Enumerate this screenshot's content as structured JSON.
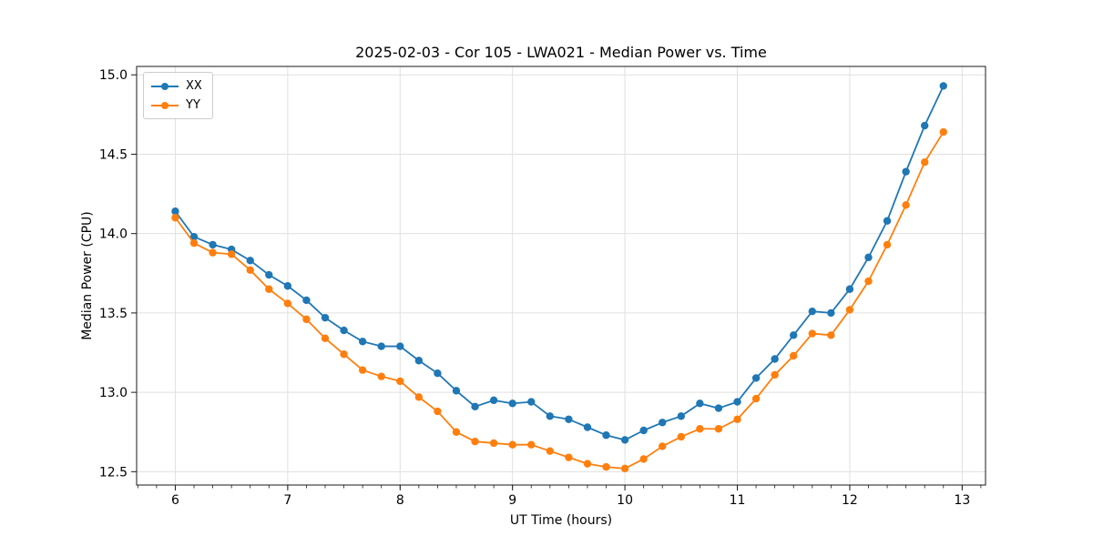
{
  "figure": {
    "title": "2025-02-03 - Cor 105 - LWA021 - Median Power vs. Time"
  },
  "legend": {
    "items": [
      {
        "label": "XX",
        "color": "#1f77b4"
      },
      {
        "label": "YY",
        "color": "#ff7f0e"
      }
    ]
  },
  "chart_data": {
    "type": "line",
    "title": "2025-02-03 - Cor 105 - LWA021 - Median Power vs. Time",
    "xlabel": "UT Time (hours)",
    "ylabel": "Median Power (CPU)",
    "xlim": [
      5.656,
      13.208
    ],
    "ylim": [
      12.416,
      15.053
    ],
    "x_major_ticks": [
      6,
      7,
      8,
      9,
      10,
      11,
      12,
      13
    ],
    "x_minor_step": 0.166667,
    "y_ticks": [
      12.5,
      13.0,
      13.5,
      14.0,
      14.5,
      15.0
    ],
    "grid": true,
    "grid_color": "#e0e0e0",
    "legend_position": "upper left",
    "marker": "o",
    "x": [
      6.0,
      6.1667,
      6.3333,
      6.5,
      6.6667,
      6.8333,
      7.0,
      7.1667,
      7.3333,
      7.5,
      7.6667,
      7.8333,
      8.0,
      8.1667,
      8.3333,
      8.5,
      8.6667,
      8.8333,
      9.0,
      9.1667,
      9.3333,
      9.5,
      9.6667,
      9.8333,
      10.0,
      10.1667,
      10.3333,
      10.5,
      10.6667,
      10.8333,
      11.0,
      11.1667,
      11.3333,
      11.5,
      11.6667,
      11.8333,
      12.0,
      12.1667,
      12.3333,
      12.5,
      12.6667,
      12.8333
    ],
    "series": [
      {
        "name": "XX",
        "color": "#1f77b4",
        "values": [
          14.14,
          13.98,
          13.93,
          13.9,
          13.83,
          13.74,
          13.67,
          13.58,
          13.47,
          13.39,
          13.32,
          13.29,
          13.29,
          13.2,
          13.12,
          13.01,
          12.91,
          12.95,
          12.93,
          12.94,
          12.85,
          12.83,
          12.78,
          12.73,
          12.7,
          12.76,
          12.81,
          12.85,
          12.93,
          12.9,
          12.94,
          13.09,
          13.21,
          13.36,
          13.51,
          13.5,
          13.65,
          13.85,
          14.08,
          14.39,
          14.68,
          14.93
        ]
      },
      {
        "name": "YY",
        "color": "#ff7f0e",
        "values": [
          14.1,
          13.94,
          13.88,
          13.87,
          13.77,
          13.65,
          13.56,
          13.46,
          13.34,
          13.24,
          13.14,
          13.1,
          13.07,
          12.97,
          12.88,
          12.75,
          12.69,
          12.68,
          12.67,
          12.67,
          12.63,
          12.59,
          12.55,
          12.53,
          12.52,
          12.58,
          12.66,
          12.72,
          12.77,
          12.77,
          12.83,
          12.96,
          13.11,
          13.23,
          13.37,
          13.36,
          13.52,
          13.7,
          13.93,
          14.18,
          14.45,
          14.64
        ]
      }
    ]
  }
}
